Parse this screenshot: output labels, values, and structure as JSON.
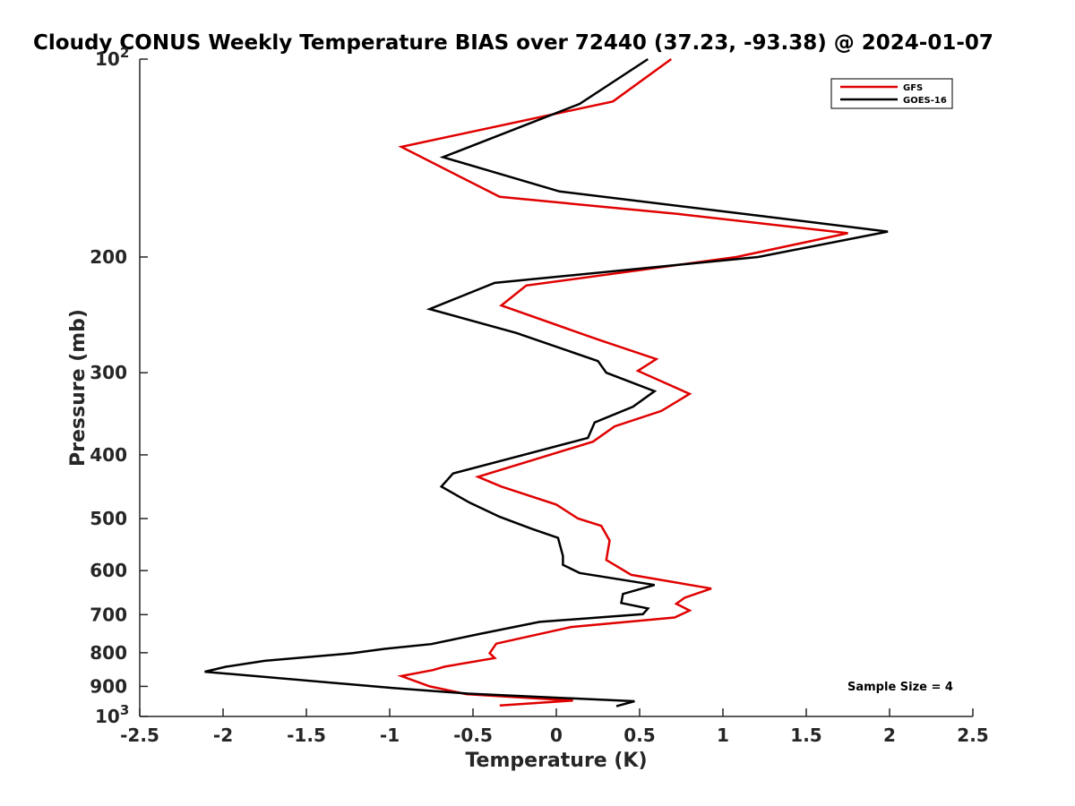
{
  "chart_data": {
    "type": "line",
    "title": "Cloudy CONUS Weekly Temperature BIAS over 72440 (37.23, -93.38) @ 2024-01-07",
    "xlabel": "Temperature (K)",
    "ylabel": "Pressure (mb)",
    "xlim": [
      -2.5,
      2.5
    ],
    "ylim": [
      100,
      1000
    ],
    "y_scale": "log",
    "y_reversed": true,
    "grid": false,
    "legend_position": "top-right",
    "x_ticks": [
      "-2.5",
      "-2",
      "-1.5",
      "-1",
      "-0.5",
      "0",
      "0.5",
      "1",
      "1.5",
      "2",
      "2.5"
    ],
    "x_tick_values": [
      -2.5,
      -2,
      -1.5,
      -1,
      -0.5,
      0,
      0.5,
      1,
      1.5,
      2,
      2.5
    ],
    "y_ticks": [
      {
        "value": 100,
        "base": "10",
        "exp": "2"
      },
      {
        "value": 200,
        "label": "200"
      },
      {
        "value": 300,
        "label": "300"
      },
      {
        "value": 400,
        "label": "400"
      },
      {
        "value": 500,
        "label": "500"
      },
      {
        "value": 600,
        "label": "600"
      },
      {
        "value": 700,
        "label": "700"
      },
      {
        "value": 800,
        "label": "800"
      },
      {
        "value": 900,
        "label": "900"
      },
      {
        "value": 1000,
        "base": "10",
        "exp": "3"
      }
    ],
    "annotation": "Sample Size = 4",
    "series": [
      {
        "name": "GFS",
        "color": "#e00000",
        "points": [
          [
            0.69,
            100
          ],
          [
            0.34,
            116
          ],
          [
            -0.93,
            136
          ],
          [
            -0.34,
            162
          ],
          [
            0.73,
            172
          ],
          [
            1.75,
            184
          ],
          [
            1.08,
            200
          ],
          [
            -0.18,
            221
          ],
          [
            -0.33,
            237
          ],
          [
            0.25,
            267
          ],
          [
            0.6,
            286
          ],
          [
            0.49,
            298
          ],
          [
            0.8,
            323
          ],
          [
            0.63,
            343
          ],
          [
            0.35,
            362
          ],
          [
            0.22,
            382
          ],
          [
            -0.47,
            432
          ],
          [
            -0.33,
            447
          ],
          [
            0.0,
            476
          ],
          [
            0.13,
            500
          ],
          [
            0.27,
            513
          ],
          [
            0.32,
            540
          ],
          [
            0.3,
            578
          ],
          [
            0.45,
            609
          ],
          [
            0.93,
            639
          ],
          [
            0.77,
            660
          ],
          [
            0.72,
            674
          ],
          [
            0.8,
            690
          ],
          [
            0.71,
            707
          ],
          [
            0.09,
            731
          ],
          [
            -0.36,
            775
          ],
          [
            -0.4,
            801
          ],
          [
            -0.37,
            815
          ],
          [
            -0.67,
            840
          ],
          [
            -0.74,
            850
          ],
          [
            -0.93,
            868
          ],
          [
            -0.76,
            900
          ],
          [
            -0.54,
            925
          ],
          [
            0.1,
            946
          ],
          [
            -0.34,
            962
          ]
        ]
      },
      {
        "name": "GOES-16",
        "color": "#000000",
        "points": [
          [
            0.55,
            100
          ],
          [
            0.14,
            117
          ],
          [
            -0.68,
            141
          ],
          [
            0.02,
            159
          ],
          [
            1.21,
            173
          ],
          [
            1.99,
            183
          ],
          [
            1.21,
            200
          ],
          [
            -0.37,
            219
          ],
          [
            -0.76,
            240
          ],
          [
            -0.24,
            261
          ],
          [
            0.25,
            288
          ],
          [
            0.3,
            300
          ],
          [
            0.59,
            320
          ],
          [
            0.46,
            338
          ],
          [
            0.23,
            357
          ],
          [
            0.19,
            377
          ],
          [
            -0.62,
            427
          ],
          [
            -0.69,
            447
          ],
          [
            -0.52,
            473
          ],
          [
            -0.34,
            497
          ],
          [
            -0.15,
            518
          ],
          [
            0.01,
            535
          ],
          [
            0.04,
            570
          ],
          [
            0.04,
            588
          ],
          [
            0.14,
            605
          ],
          [
            0.59,
            631
          ],
          [
            0.4,
            651
          ],
          [
            0.39,
            672
          ],
          [
            0.55,
            685
          ],
          [
            0.52,
            699
          ],
          [
            -0.1,
            718
          ],
          [
            -0.46,
            749
          ],
          [
            -0.75,
            776
          ],
          [
            -1.03,
            789
          ],
          [
            -1.22,
            801
          ],
          [
            -1.75,
            823
          ],
          [
            -1.98,
            840
          ],
          [
            -2.11,
            855
          ],
          [
            -0.98,
            905
          ],
          [
            -0.53,
            923
          ],
          [
            0.47,
            948
          ],
          [
            0.36,
            965
          ]
        ]
      }
    ]
  }
}
